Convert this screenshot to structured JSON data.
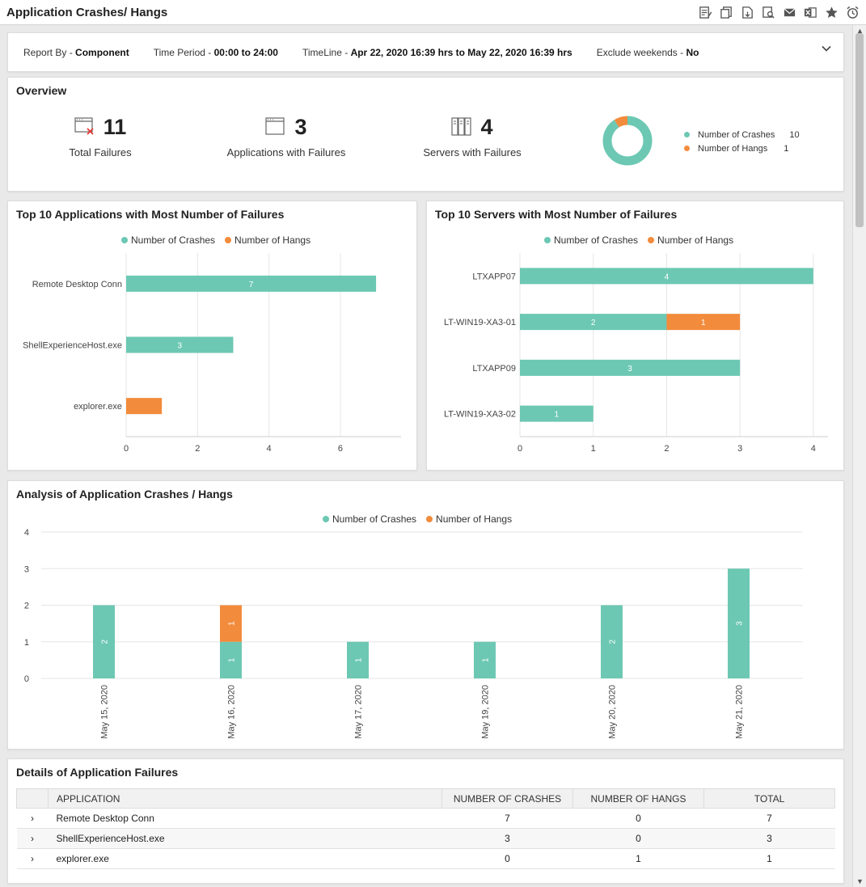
{
  "header": {
    "title": "Application Crashes/ Hangs",
    "tools": [
      "edit-report-icon",
      "copy-report-icon",
      "export-pdf-icon",
      "preview-icon",
      "email-icon",
      "export-excel-icon",
      "favorite-star-icon",
      "schedule-alarm-icon"
    ]
  },
  "filters": {
    "report_by_label": "Report By - ",
    "report_by_value": "Component",
    "period_label": "Time Period - ",
    "period_value": "00:00 to 24:00",
    "timeline_label": "TimeLine - ",
    "timeline_value": "Apr 22, 2020 16:39 hrs to May 22, 2020 16:39 hrs",
    "weekends_label": "Exclude weekends - ",
    "weekends_value": "No"
  },
  "overview": {
    "title": "Overview",
    "total_failures": "11",
    "total_failures_label": "Total Failures",
    "apps_with_failures": "3",
    "apps_with_failures_label": "Applications with Failures",
    "servers_with_failures": "4",
    "servers_with_failures_label": "Servers with Failures",
    "legend": [
      {
        "name": "Number of Crashes",
        "value": "10",
        "color": "#6cc8b3"
      },
      {
        "name": "Number of Hangs",
        "value": "1",
        "color": "#f28b3c"
      }
    ]
  },
  "colors": {
    "crashes": "#6cc8b3",
    "hangs": "#f28b3c"
  },
  "legend_labels": {
    "crashes": "Number of Crashes",
    "hangs": "Number of Hangs"
  },
  "chart_data": [
    {
      "type": "bar",
      "orientation": "horizontal",
      "stacked": true,
      "title": "Top 10 Applications with Most Number of Failures",
      "categories": [
        "Remote Desktop Conn",
        "ShellExperienceHost.exe",
        "explorer.exe"
      ],
      "series": [
        {
          "name": "Number of Crashes",
          "values": [
            7,
            3,
            0
          ]
        },
        {
          "name": "Number of Hangs",
          "values": [
            0,
            0,
            1
          ]
        }
      ],
      "xlim": [
        0,
        7.7
      ],
      "xticks": [
        0,
        2,
        4,
        6
      ],
      "legend": "top-center"
    },
    {
      "type": "bar",
      "orientation": "horizontal",
      "stacked": true,
      "title": "Top 10 Servers with Most Number of Failures",
      "categories": [
        "LTXAPP07",
        "LT-WIN19-XA3-01",
        "LTXAPP09",
        "LT-WIN19-XA3-02"
      ],
      "series": [
        {
          "name": "Number of Crashes",
          "values": [
            4,
            2,
            3,
            1
          ]
        },
        {
          "name": "Number of Hangs",
          "values": [
            0,
            1,
            0,
            0
          ]
        }
      ],
      "xlim": [
        0,
        4.2
      ],
      "xticks": [
        0,
        1,
        2,
        3,
        4
      ],
      "legend": "top-center"
    },
    {
      "type": "bar",
      "orientation": "vertical",
      "stacked": true,
      "title": "Analysis of Application Crashes / Hangs",
      "categories": [
        "May 15, 2020",
        "May 16, 2020",
        "May 17, 2020",
        "May 19, 2020",
        "May 20, 2020",
        "May 21, 2020"
      ],
      "series": [
        {
          "name": "Number of Crashes",
          "values": [
            2,
            1,
            1,
            1,
            2,
            3
          ]
        },
        {
          "name": "Number of Hangs",
          "values": [
            0,
            1,
            0,
            0,
            0,
            0
          ]
        }
      ],
      "ylim": [
        0,
        4
      ],
      "yticks": [
        0,
        1,
        2,
        3,
        4
      ],
      "legend": "top-center"
    }
  ],
  "details": {
    "title": "Details of Application Failures",
    "columns": [
      "APPLICATION",
      "NUMBER OF CRASHES",
      "NUMBER OF HANGS",
      "TOTAL"
    ],
    "rows": [
      {
        "app": "Remote Desktop Conn",
        "crashes": "7",
        "hangs": "0",
        "total": "7"
      },
      {
        "app": "ShellExperienceHost.exe",
        "crashes": "3",
        "hangs": "0",
        "total": "3"
      },
      {
        "app": "explorer.exe",
        "crashes": "0",
        "hangs": "1",
        "total": "1"
      }
    ]
  }
}
